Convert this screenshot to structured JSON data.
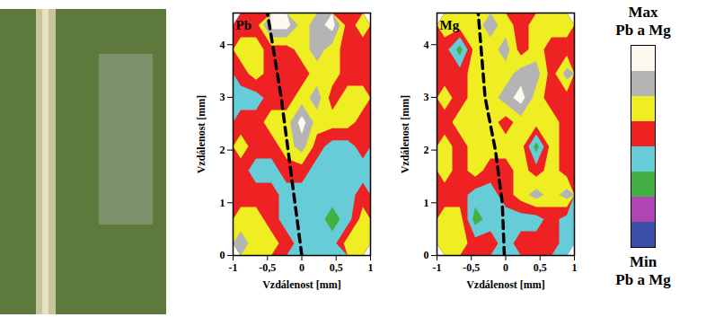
{
  "chart_data": [
    {
      "type": "contour",
      "title": "Pb",
      "x_label": "Vzdálenost [mm]",
      "y_label": "Vzdálenost [mm]",
      "xlim": [
        -1,
        1
      ],
      "ylim": [
        0,
        4.6
      ],
      "xticks": [
        -1,
        {
          "value": -0.5,
          "label": "-0,5"
        },
        0,
        {
          "value": 0.5,
          "label": "0,5"
        },
        1
      ],
      "yticks": [
        0,
        1,
        2,
        3,
        4
      ],
      "grid": false,
      "cells": [
        [
          6,
          5,
          5,
          4,
          3,
          3,
          3,
          5,
          5
        ],
        [
          5,
          5,
          4,
          3,
          3,
          3,
          2,
          3,
          5
        ],
        [
          4,
          4,
          4,
          3,
          3,
          3,
          3,
          3,
          4
        ],
        [
          4,
          3,
          3,
          4,
          4,
          3,
          3,
          3,
          3
        ],
        [
          5,
          4,
          4,
          5,
          6,
          4,
          3,
          3,
          4
        ],
        [
          4,
          4,
          5,
          5,
          7,
          5,
          5,
          5,
          4
        ],
        [
          3,
          3,
          4,
          4,
          5,
          6,
          4,
          5,
          5
        ],
        [
          4,
          5,
          4,
          4,
          4,
          5,
          5,
          4,
          4
        ],
        [
          5,
          5,
          4,
          4,
          5,
          6,
          5,
          4,
          4
        ],
        [
          4,
          4,
          7,
          7,
          5,
          6,
          7,
          4,
          5
        ]
      ],
      "vein": {
        "x": [
          0,
          -0.1,
          -0.2,
          -0.3,
          -0.5
        ],
        "y": [
          0,
          1,
          2,
          3,
          4.6
        ],
        "line_style": "dashed",
        "color": "#000000"
      }
    },
    {
      "type": "contour",
      "title": "Mg",
      "x_label": "Vzdálenost [mm]",
      "y_label": "Vzdálenost [mm]",
      "xlim": [
        -1,
        1
      ],
      "ylim": [
        0,
        4.6
      ],
      "xticks": [
        -1,
        {
          "value": -0.5,
          "label": "-0,5"
        },
        0,
        {
          "value": 0.5,
          "label": "0,5"
        },
        1
      ],
      "yticks": [
        0,
        1,
        2,
        3,
        4
      ],
      "grid": false,
      "cells": [
        [
          5,
          5,
          4,
          4,
          3,
          4,
          4,
          4,
          3
        ],
        [
          5,
          5,
          2,
          3,
          3,
          3,
          3,
          4,
          3
        ],
        [
          4,
          4,
          3,
          3,
          4,
          5,
          6,
          5,
          6
        ],
        [
          5,
          4,
          5,
          4,
          4,
          5,
          4,
          5,
          4
        ],
        [
          5,
          4,
          5,
          5,
          5,
          5,
          2,
          5,
          4
        ],
        [
          4,
          5,
          5,
          5,
          4,
          5,
          5,
          5,
          4
        ],
        [
          5,
          4,
          5,
          5,
          6,
          7,
          5,
          4,
          4
        ],
        [
          4,
          4,
          5,
          5,
          5,
          6,
          6,
          4,
          6
        ],
        [
          4,
          2,
          5,
          5,
          6,
          4,
          5,
          4,
          4
        ],
        [
          5,
          5,
          5,
          6,
          5,
          4,
          5,
          5,
          5
        ]
      ],
      "vein": {
        "x": [
          -0.02,
          -0.05,
          -0.15,
          -0.3,
          -0.4
        ],
        "y": [
          0,
          1,
          2,
          3,
          4.6
        ],
        "line_style": "dashed",
        "color": "#000000"
      }
    }
  ],
  "colorbar": {
    "colors": [
      "#3a4fa8",
      "#b044b4",
      "#44b044",
      "#66ccd8",
      "#ee2222",
      "#eeee22",
      "#b4b4b4",
      "#fdf9ee"
    ],
    "max_label": [
      "Max",
      "Pb a Mg"
    ],
    "min_label": [
      "Min",
      "Pb a Mg"
    ]
  }
}
